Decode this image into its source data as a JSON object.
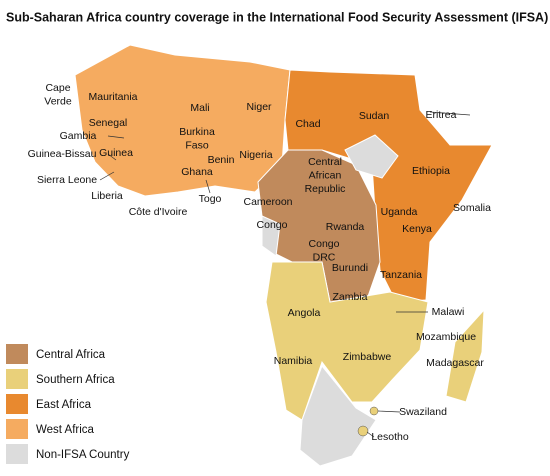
{
  "title": "Sub-Saharan Africa country coverage in the International Food Security Assessment (IFSA)",
  "legend": [
    {
      "label": "Central Africa",
      "color": "#c08a5c"
    },
    {
      "label": "Southern Africa",
      "color": "#e9d07a"
    },
    {
      "label": "East Africa",
      "color": "#e8892f"
    },
    {
      "label": "West Africa",
      "color": "#f5ab60"
    },
    {
      "label": "Non-IFSA Country",
      "color": "#dcdcdc"
    }
  ],
  "labels": [
    [
      "Cape",
      "Verde"
    ],
    [
      "Mauritania"
    ],
    [
      "Mali"
    ],
    [
      "Niger"
    ],
    [
      "Senegal"
    ],
    [
      "Gambia"
    ],
    [
      "Burkina",
      "Faso"
    ],
    [
      "Guinea-Bissau"
    ],
    [
      "Guinea"
    ],
    [
      "Benin"
    ],
    [
      "Nigeria"
    ],
    [
      "Ghana"
    ],
    [
      "Sierra Leone"
    ],
    [
      "Liberia"
    ],
    [
      "Togo"
    ],
    [
      "Côte d'Ivoire"
    ],
    [
      "Chad"
    ],
    [
      "Sudan"
    ],
    [
      "Eritrea"
    ],
    [
      "Central",
      "African",
      "Republic"
    ],
    [
      "Ethiopia"
    ],
    [
      "Cameroon"
    ],
    [
      "Somalia"
    ],
    [
      "Uganda"
    ],
    [
      "Congo"
    ],
    [
      "Rwanda"
    ],
    [
      "Kenya"
    ],
    [
      "Congo",
      "DRC"
    ],
    [
      "Burundi"
    ],
    [
      "Tanzania"
    ],
    [
      "Angola"
    ],
    [
      "Malawi"
    ],
    [
      "Zambia"
    ],
    [
      "Mozambique"
    ],
    [
      "Namibia"
    ],
    [
      "Zimbabwe"
    ],
    [
      "Madagascar"
    ],
    [
      "Swaziland"
    ],
    [
      "Lesotho"
    ]
  ]
}
